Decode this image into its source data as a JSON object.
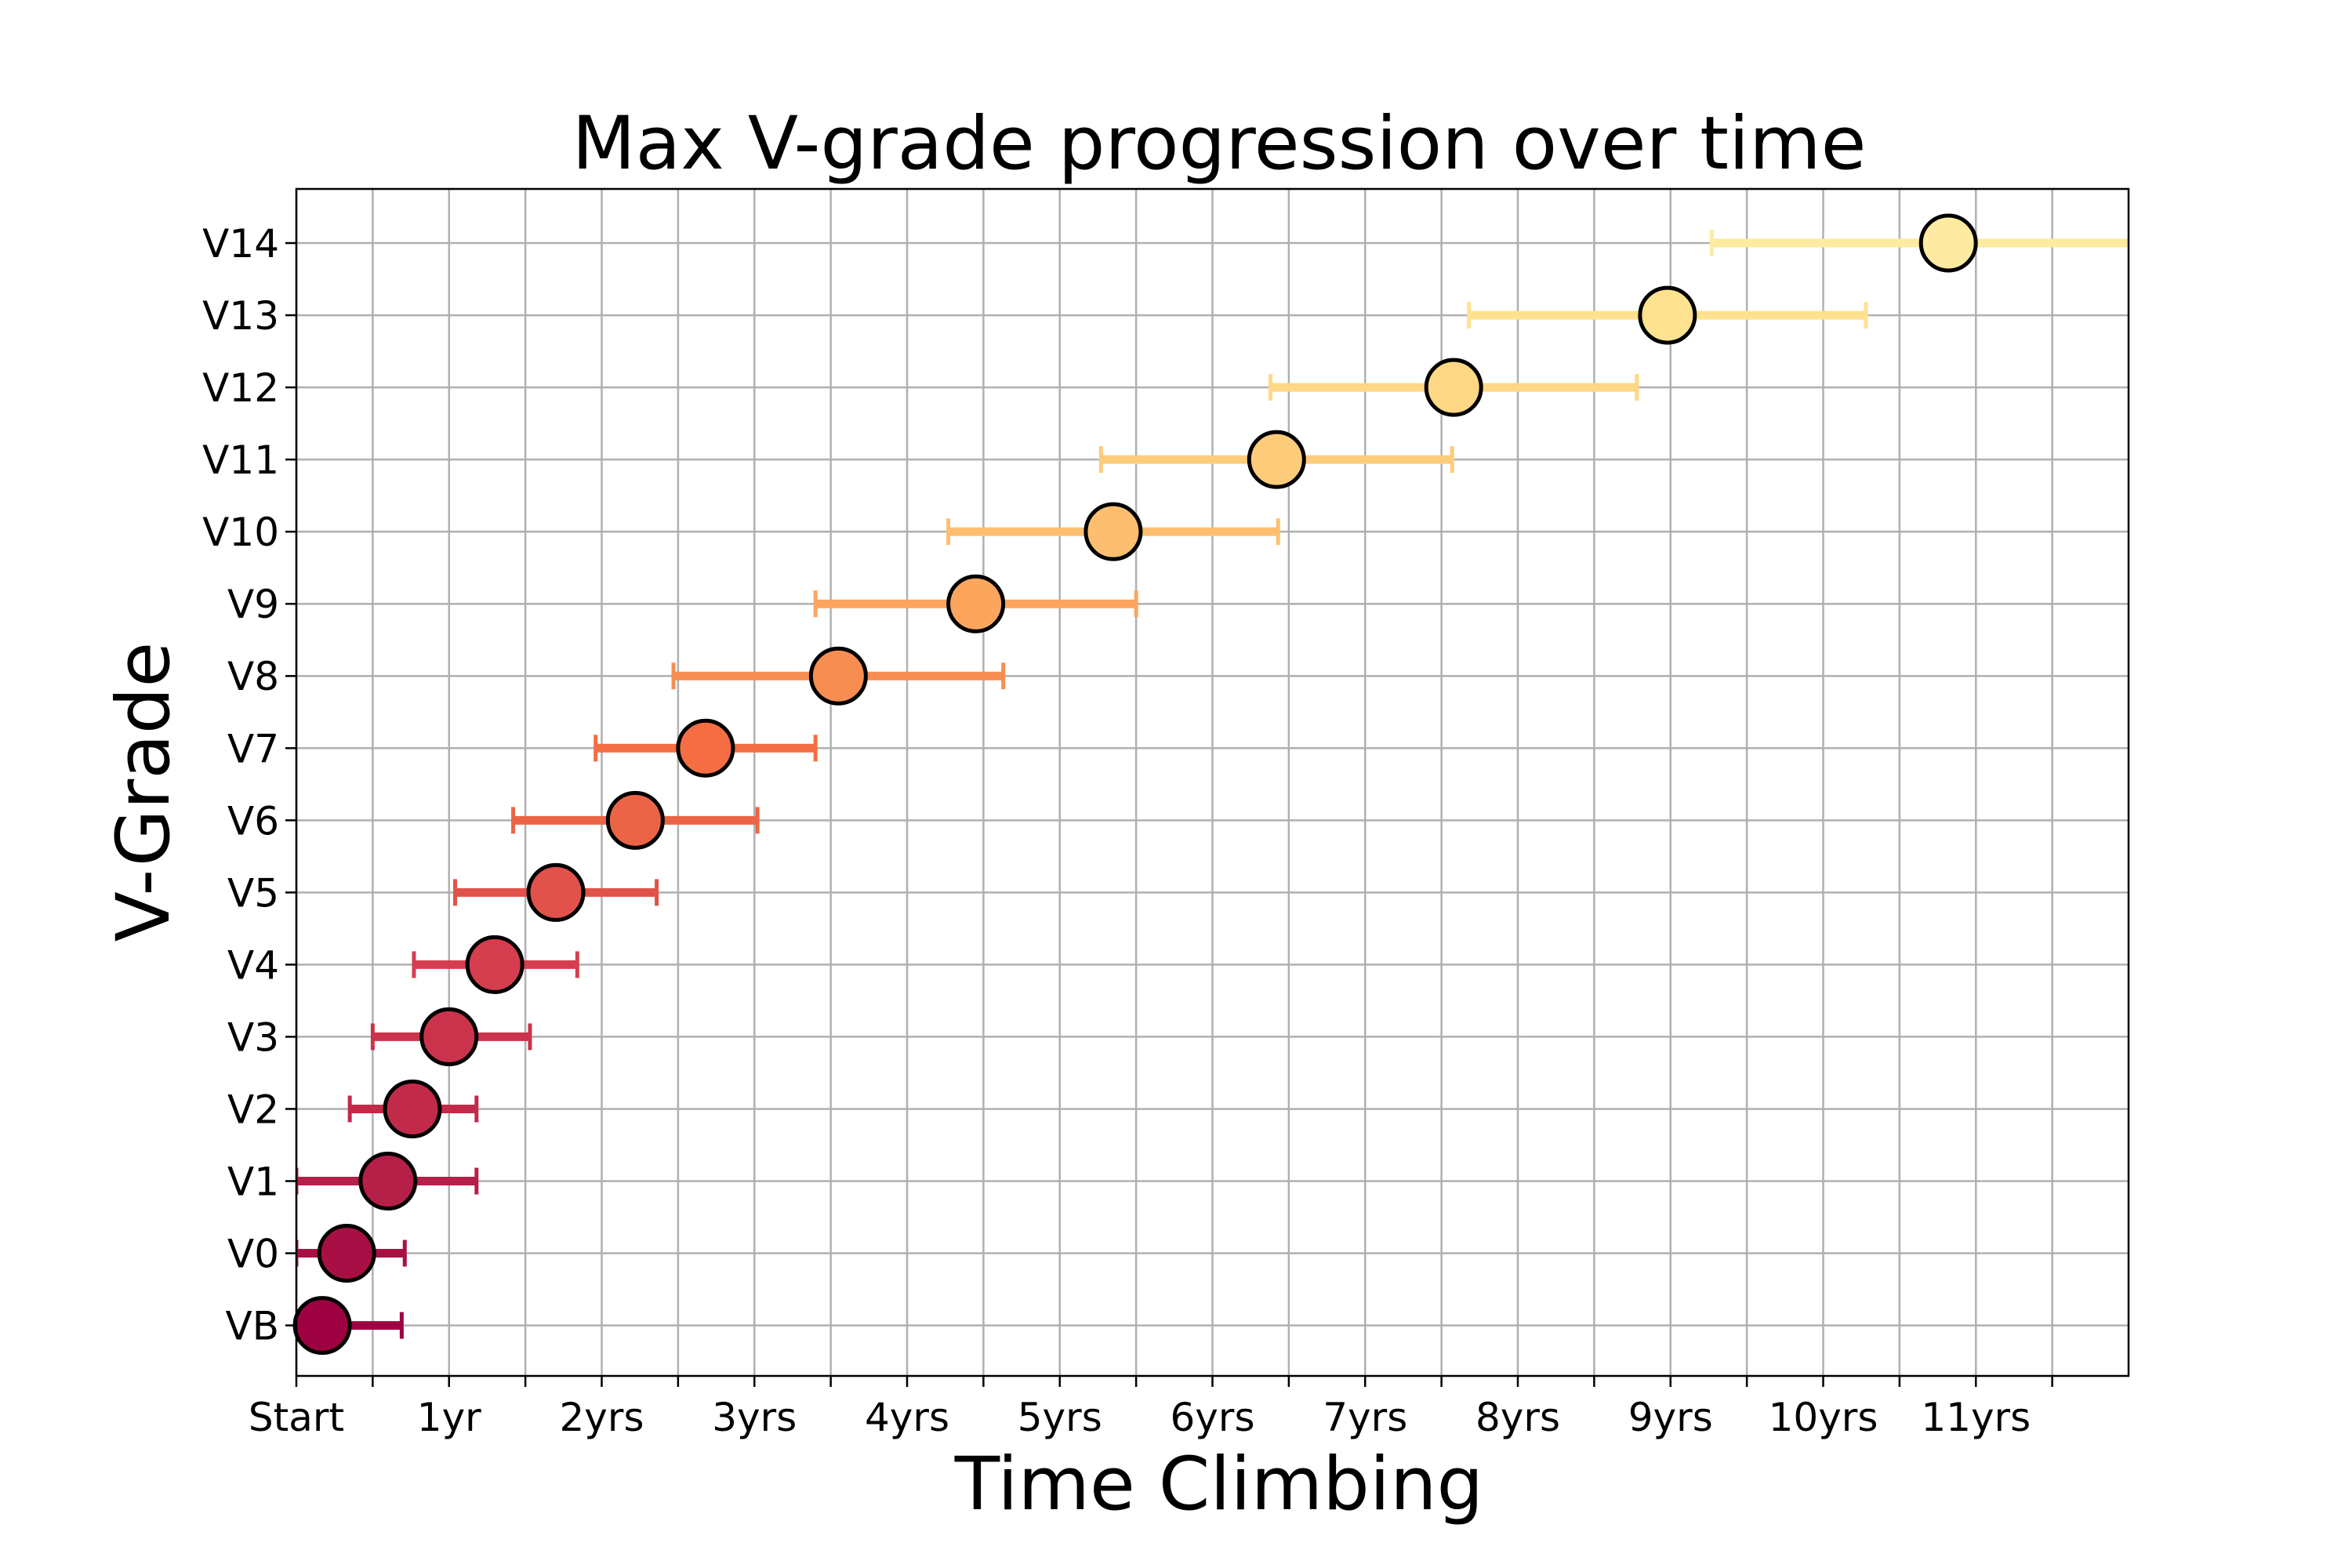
{
  "chart_data": {
    "type": "scatter",
    "title": "Max V-grade progression over time",
    "xlabel": "Time Climbing",
    "ylabel": "V-Grade",
    "xlim": [
      0,
      12
    ],
    "ylim": [
      -0.7,
      15.75
    ],
    "x_ticks": [
      {
        "value": 0,
        "label": "Start"
      },
      {
        "value": 0.5,
        "label": ""
      },
      {
        "value": 1,
        "label": "1yr"
      },
      {
        "value": 1.5,
        "label": ""
      },
      {
        "value": 2,
        "label": "2yrs"
      },
      {
        "value": 2.5,
        "label": ""
      },
      {
        "value": 3,
        "label": "3yrs"
      },
      {
        "value": 3.5,
        "label": ""
      },
      {
        "value": 4,
        "label": "4yrs"
      },
      {
        "value": 4.5,
        "label": ""
      },
      {
        "value": 5,
        "label": "5yrs"
      },
      {
        "value": 5.5,
        "label": ""
      },
      {
        "value": 6,
        "label": "6yrs"
      },
      {
        "value": 6.5,
        "label": ""
      },
      {
        "value": 7,
        "label": "7yrs"
      },
      {
        "value": 7.5,
        "label": ""
      },
      {
        "value": 8,
        "label": "8yrs"
      },
      {
        "value": 8.5,
        "label": ""
      },
      {
        "value": 9,
        "label": "9yrs"
      },
      {
        "value": 9.5,
        "label": ""
      },
      {
        "value": 10,
        "label": "10yrs"
      },
      {
        "value": 10.5,
        "label": ""
      },
      {
        "value": 11,
        "label": "11yrs"
      },
      {
        "value": 11.5,
        "label": ""
      }
    ],
    "y_ticks": [
      "VB",
      "V0",
      "V1",
      "V2",
      "V3",
      "V4",
      "V5",
      "V6",
      "V7",
      "V8",
      "V9",
      "V10",
      "V11",
      "V12",
      "V13",
      "V14"
    ],
    "grid": true,
    "points": [
      {
        "grade": "VB",
        "y": 0,
        "x": 0.17,
        "xerr_low": 0.17,
        "xerr_high": 0.52,
        "color": "#9e0142"
      },
      {
        "grade": "V0",
        "y": 1,
        "x": 0.33,
        "xerr_low": 0.33,
        "xerr_high": 0.38,
        "color": "#a81045"
      },
      {
        "grade": "V1",
        "y": 2,
        "x": 0.6,
        "xerr_low": 0.6,
        "xerr_high": 0.58,
        "color": "#b51f48"
      },
      {
        "grade": "V2",
        "y": 3,
        "x": 0.76,
        "xerr_low": 0.41,
        "xerr_high": 0.42,
        "color": "#c22a4a"
      },
      {
        "grade": "V3",
        "y": 4,
        "x": 1.0,
        "xerr_low": 0.5,
        "xerr_high": 0.53,
        "color": "#cb334c"
      },
      {
        "grade": "V4",
        "y": 5,
        "x": 1.3,
        "xerr_low": 0.53,
        "xerr_high": 0.54,
        "color": "#d53e4f"
      },
      {
        "grade": "V5",
        "y": 6,
        "x": 1.7,
        "xerr_low": 0.66,
        "xerr_high": 0.66,
        "color": "#e1524a"
      },
      {
        "grade": "V6",
        "y": 7,
        "x": 2.22,
        "xerr_low": 0.8,
        "xerr_high": 0.8,
        "color": "#eb6446"
      },
      {
        "grade": "V7",
        "y": 8,
        "x": 2.68,
        "xerr_low": 0.72,
        "xerr_high": 0.72,
        "color": "#f46d43"
      },
      {
        "grade": "V8",
        "y": 9,
        "x": 3.55,
        "xerr_low": 1.08,
        "xerr_high": 1.08,
        "color": "#f88d52"
      },
      {
        "grade": "V9",
        "y": 10,
        "x": 4.45,
        "xerr_low": 1.05,
        "xerr_high": 1.05,
        "color": "#fca55d"
      },
      {
        "grade": "V10",
        "y": 11,
        "x": 5.35,
        "xerr_low": 1.08,
        "xerr_high": 1.08,
        "color": "#fdbf6f"
      },
      {
        "grade": "V11",
        "y": 12,
        "x": 6.42,
        "xerr_low": 1.15,
        "xerr_high": 1.15,
        "color": "#fdcc7a"
      },
      {
        "grade": "V12",
        "y": 13,
        "x": 7.58,
        "xerr_low": 1.2,
        "xerr_high": 1.2,
        "color": "#fed884"
      },
      {
        "grade": "V13",
        "y": 14,
        "x": 8.98,
        "xerr_low": 1.3,
        "xerr_high": 1.3,
        "color": "#fee28f"
      },
      {
        "grade": "V14",
        "y": 15,
        "x": 10.82,
        "xerr_low": 1.55,
        "xerr_high": 1.55,
        "color": "#feeaa0"
      }
    ]
  }
}
